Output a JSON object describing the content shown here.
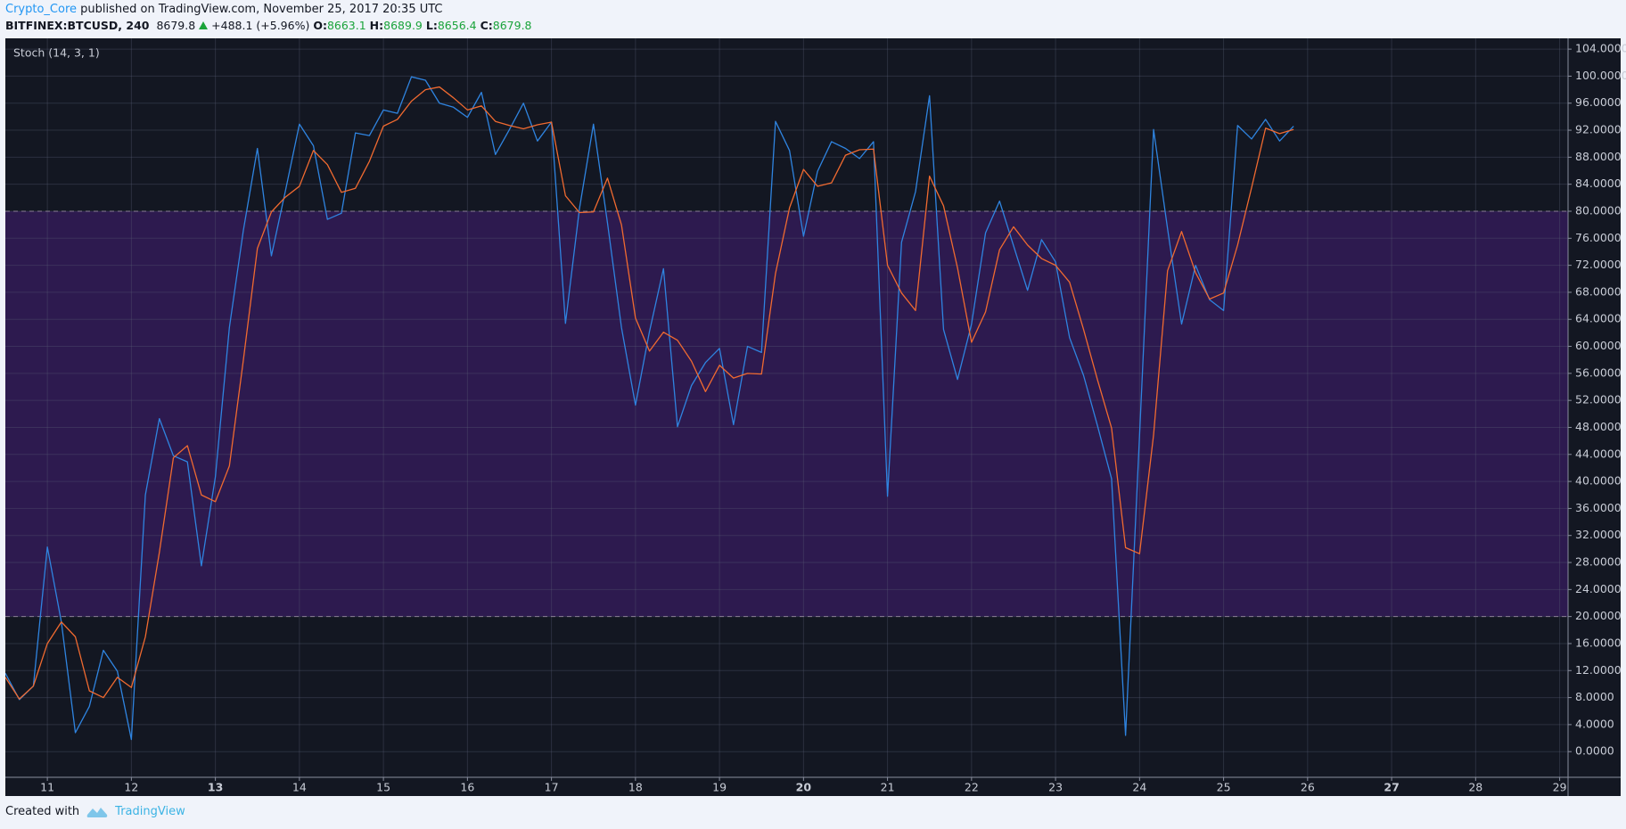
{
  "header": {
    "author": "Crypto_Core",
    "published": "published on TradingView.com, November 25, 2017 20:35 UTC",
    "symbol": "BITFINEX:BTCUSD, 240",
    "last": "8679.8",
    "change": "+488.1 (+5.96%)",
    "ohlc": [
      {
        "label": "O:",
        "value": "8663.1"
      },
      {
        "label": "H:",
        "value": "8689.9"
      },
      {
        "label": "L:",
        "value": "8656.4"
      },
      {
        "label": "C:",
        "value": "8679.8"
      }
    ]
  },
  "footer": {
    "text": "Created with",
    "brand": "TradingView"
  },
  "chart_data": {
    "type": "line",
    "title": "Stoch (14, 3, 1)",
    "x": [
      10.5,
      10.6667,
      10.8333,
      11,
      11.1667,
      11.3333,
      11.5,
      11.6667,
      11.8333,
      12,
      12.1667,
      12.3333,
      12.5,
      12.6667,
      12.8333,
      13,
      13.1667,
      13.3333,
      13.5,
      13.6667,
      13.8333,
      14,
      14.1667,
      14.3333,
      14.5,
      14.6667,
      14.8333,
      15,
      15.1667,
      15.3333,
      15.5,
      15.6667,
      15.8333,
      16,
      16.1667,
      16.3333,
      16.5,
      16.6667,
      16.8333,
      17,
      17.1667,
      17.3333,
      17.5,
      17.6667,
      17.8333,
      18,
      18.1667,
      18.3333,
      18.5,
      18.6667,
      18.8333,
      19,
      19.1667,
      19.3333,
      19.5,
      19.6667,
      19.8333,
      20,
      20.1667,
      20.3333,
      20.5,
      20.6667,
      20.8333,
      21,
      21.1667,
      21.3333,
      21.5,
      21.6667,
      21.8333,
      22,
      22.1667,
      22.3333,
      22.5,
      22.6667,
      22.8333,
      23,
      23.1667,
      23.3333,
      23.5,
      23.6667,
      23.8333,
      24,
      24.1667,
      24.3333,
      24.5,
      24.6667,
      24.8333,
      25,
      25.1667,
      25.3333,
      25.5,
      25.6667,
      25.8333
    ],
    "series": [
      {
        "color": "#2f84e0",
        "values": [
          11.6,
          7.7,
          9.7,
          30.3,
          19.2,
          2.8,
          6.7,
          15.0,
          11.9,
          1.8,
          38.0,
          49.3,
          43.8,
          42.9,
          27.5,
          40.7,
          62.8,
          77.2,
          89.3,
          73.4,
          83.0,
          92.9,
          89.7,
          78.8,
          79.7,
          91.6,
          91.2,
          95.0,
          94.5,
          99.9,
          99.4,
          96.0,
          95.4,
          93.9,
          97.6,
          88.4,
          92.1,
          96.0,
          90.4,
          93.2,
          63.4,
          80.4,
          92.9,
          78.3,
          62.8,
          51.3,
          62.2,
          71.5,
          48.1,
          54.2,
          57.6,
          59.7,
          48.4,
          60.0,
          59.1,
          93.3,
          89.0,
          76.3,
          85.9,
          90.3,
          89.3,
          87.8,
          90.3,
          37.8,
          75.4,
          82.9,
          97.1,
          62.5,
          55.1,
          63.3,
          76.8,
          81.5,
          74.9,
          68.3,
          75.8,
          72.5,
          61.3,
          55.7,
          48.2,
          40.4,
          2.4,
          46.9,
          92.1,
          77.4,
          63.3,
          72.0,
          66.9,
          65.3,
          92.7,
          90.7,
          93.6,
          90.4,
          92.6
        ]
      },
      {
        "color": "#f06a30",
        "values": [
          11.0,
          7.8,
          9.7,
          16.0,
          19.2,
          17.0,
          9.0,
          8.0,
          11.0,
          9.5,
          17.0,
          29.5,
          43.5,
          45.3,
          38.0,
          37.0,
          42.3,
          58.0,
          74.5,
          79.9,
          82.1,
          83.7,
          89.0,
          86.9,
          82.8,
          83.4,
          87.4,
          92.6,
          93.6,
          96.3,
          98.0,
          98.4,
          96.8,
          95.0,
          95.6,
          93.3,
          92.7,
          92.2,
          92.8,
          93.2,
          82.3,
          79.8,
          79.9,
          84.9,
          78.0,
          64.2,
          59.3,
          62.1,
          60.9,
          57.8,
          53.3,
          57.2,
          55.3,
          56.0,
          55.9,
          70.8,
          80.5,
          86.2,
          83.7,
          84.2,
          88.3,
          89.1,
          89.2,
          72.0,
          67.9,
          65.3,
          85.2,
          80.8,
          71.6,
          60.6,
          65.1,
          74.3,
          77.7,
          75.0,
          73.0,
          72.0,
          69.5,
          62.5,
          55.0,
          47.9,
          30.2,
          29.3,
          46.9,
          71.2,
          77.0,
          70.9,
          67.0,
          67.9,
          75.0,
          83.5,
          92.3,
          91.5,
          92.1
        ]
      }
    ],
    "xlim": [
      10.5,
      29.1
    ],
    "xticks": [
      11,
      12,
      13,
      14,
      15,
      16,
      17,
      18,
      19,
      20,
      21,
      22,
      23,
      24,
      25,
      26,
      27,
      28,
      29
    ],
    "xticks_bold": [
      13,
      20,
      27
    ],
    "ylim": [
      -3.8,
      105.6
    ],
    "yticks": [
      {
        "value": 0,
        "label": "0.0000"
      },
      {
        "value": 4,
        "label": "4.0000"
      },
      {
        "value": 8,
        "label": "8.0000"
      },
      {
        "value": 12,
        "label": "12.0000"
      },
      {
        "value": 16,
        "label": "16.0000"
      },
      {
        "value": 20,
        "label": "20.0000"
      },
      {
        "value": 24,
        "label": "24.0000"
      },
      {
        "value": 28,
        "label": "28.0000"
      },
      {
        "value": 32,
        "label": "32.0000"
      },
      {
        "value": 36,
        "label": "36.0000"
      },
      {
        "value": 40,
        "label": "40.0000"
      },
      {
        "value": 44,
        "label": "44.0000"
      },
      {
        "value": 48,
        "label": "48.0000"
      },
      {
        "value": 52,
        "label": "52.0000"
      },
      {
        "value": 56,
        "label": "56.0000"
      },
      {
        "value": 60,
        "label": "60.0000"
      },
      {
        "value": 64,
        "label": "64.0000"
      },
      {
        "value": 68,
        "label": "68.0000"
      },
      {
        "value": 72,
        "label": "72.0000"
      },
      {
        "value": 76,
        "label": "76.0000"
      },
      {
        "value": 80,
        "label": "80.0000"
      },
      {
        "value": 84,
        "label": "84.0000"
      },
      {
        "value": 88,
        "label": "88.0000"
      },
      {
        "value": 92,
        "label": "92.0000"
      },
      {
        "value": 96,
        "label": "96.0000"
      },
      {
        "value": 100,
        "label": "100.0000"
      },
      {
        "value": 104,
        "label": "104.0000"
      }
    ],
    "grid": true,
    "bands": {
      "lower": 20,
      "upper": 80,
      "color": "#2d1a4f"
    }
  }
}
